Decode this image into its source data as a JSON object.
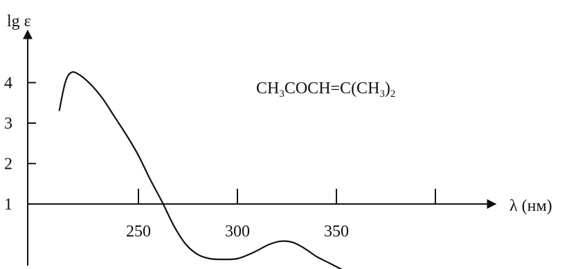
{
  "chart_data": {
    "type": "line",
    "ylabel": "lg ε",
    "xlabel": "λ (нм)",
    "annotation": {
      "base": [
        "CH",
        "COCH=C(CH",
        ")"
      ],
      "subs": [
        "3",
        "3",
        "2"
      ]
    },
    "y_ticks": [
      {
        "value": 4,
        "label": "4"
      },
      {
        "value": 3,
        "label": "3"
      },
      {
        "value": 2,
        "label": "2"
      },
      {
        "value": 1,
        "label": "1"
      }
    ],
    "x_ticks": [
      {
        "value": 250,
        "label": "250"
      },
      {
        "value": 300,
        "label": "300"
      },
      {
        "value": 350,
        "label": "350"
      },
      {
        "value": 400,
        "label": ""
      }
    ],
    "series": [
      {
        "points": [
          [
            210,
            3.3
          ],
          [
            213,
            4.0
          ],
          [
            216,
            4.25
          ],
          [
            220,
            4.2
          ],
          [
            226,
            3.95
          ],
          [
            232,
            3.6
          ],
          [
            238,
            3.15
          ],
          [
            244,
            2.7
          ],
          [
            250,
            2.2
          ],
          [
            256,
            1.6
          ],
          [
            262,
            1.05
          ],
          [
            268,
            0.45
          ],
          [
            274,
            0.0
          ],
          [
            280,
            -0.25
          ],
          [
            286,
            -0.35
          ],
          [
            292,
            -0.37
          ],
          [
            300,
            -0.35
          ],
          [
            308,
            -0.2
          ],
          [
            316,
            0.0
          ],
          [
            322,
            0.08
          ],
          [
            328,
            0.05
          ],
          [
            334,
            -0.1
          ],
          [
            340,
            -0.3
          ],
          [
            346,
            -0.45
          ],
          [
            352,
            -0.6
          ],
          [
            358,
            -0.75
          ],
          [
            361,
            -0.82
          ]
        ]
      }
    ],
    "colors": {
      "curve": "#111111",
      "axis": "#111111"
    }
  }
}
